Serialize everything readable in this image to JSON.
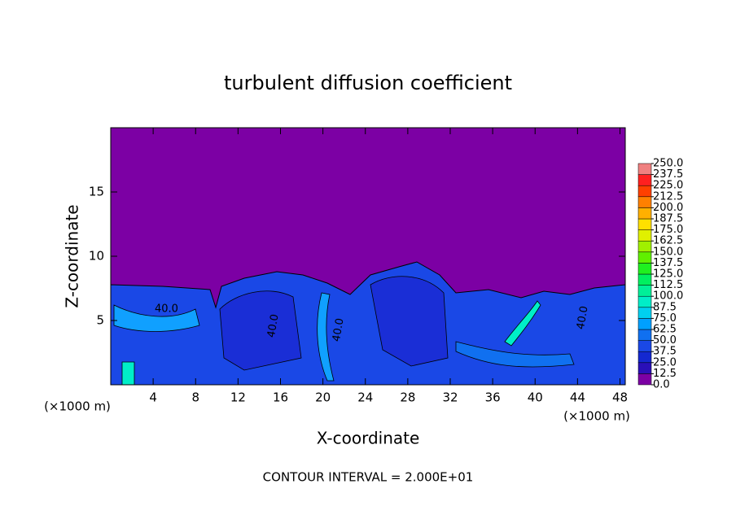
{
  "chart_data": {
    "type": "contour",
    "title": "turbulent diffusion coefficient",
    "x_label": "X-coordinate",
    "y_label": "Z-coordinate",
    "x_unit_left": "(×1000 m)",
    "x_unit_right": "(×1000 m)",
    "footer": "CONTOUR INTERVAL = 2.000E+01",
    "annotations": [
      "40.0",
      "40.0",
      "40.0",
      "40.0"
    ],
    "xlim": [
      0,
      48.5
    ],
    "xticks": [
      4,
      8,
      12,
      16,
      20,
      24,
      28,
      32,
      36,
      40,
      44,
      48
    ],
    "ylim": [
      0,
      20
    ],
    "yticks": [
      5,
      10,
      15
    ],
    "colorbar": {
      "ticks": [
        {
          "value": 0,
          "label": "0.0"
        },
        {
          "value": 12.5,
          "label": "12.5"
        },
        {
          "value": 25,
          "label": "25.0"
        },
        {
          "value": 37.5,
          "label": "37.5"
        },
        {
          "value": 50,
          "label": "50.0"
        },
        {
          "value": 62.5,
          "label": "62.5"
        },
        {
          "value": 75,
          "label": "75.0"
        },
        {
          "value": 87.5,
          "label": "87.5"
        },
        {
          "value": 100,
          "label": "100.0"
        },
        {
          "value": 112.5,
          "label": "112.5"
        },
        {
          "value": 125,
          "label": "125.0"
        },
        {
          "value": 137.5,
          "label": "137.5"
        },
        {
          "value": 150,
          "label": "150.0"
        },
        {
          "value": 162.5,
          "label": "162.5"
        },
        {
          "value": 175,
          "label": "175.0"
        },
        {
          "value": 187.5,
          "label": "187.5"
        },
        {
          "value": 200,
          "label": "200.0"
        },
        {
          "value": 212.5,
          "label": "212.5"
        },
        {
          "value": 225,
          "label": "225.0"
        },
        {
          "value": 237.5,
          "label": "237.5"
        },
        {
          "value": 250,
          "label": "250.0"
        }
      ],
      "colors": [
        "#7c00a4",
        "#2a10b8",
        "#1428d0",
        "#1a48e6",
        "#1070f0",
        "#00a0ff",
        "#00d0f0",
        "#00eec8",
        "#00f098",
        "#00f060",
        "#20f020",
        "#60f000",
        "#a0f000",
        "#e0f000",
        "#ffe000",
        "#ffb000",
        "#ff8000",
        "#ff4000",
        "#ff2020",
        "#f08080"
      ]
    }
  }
}
